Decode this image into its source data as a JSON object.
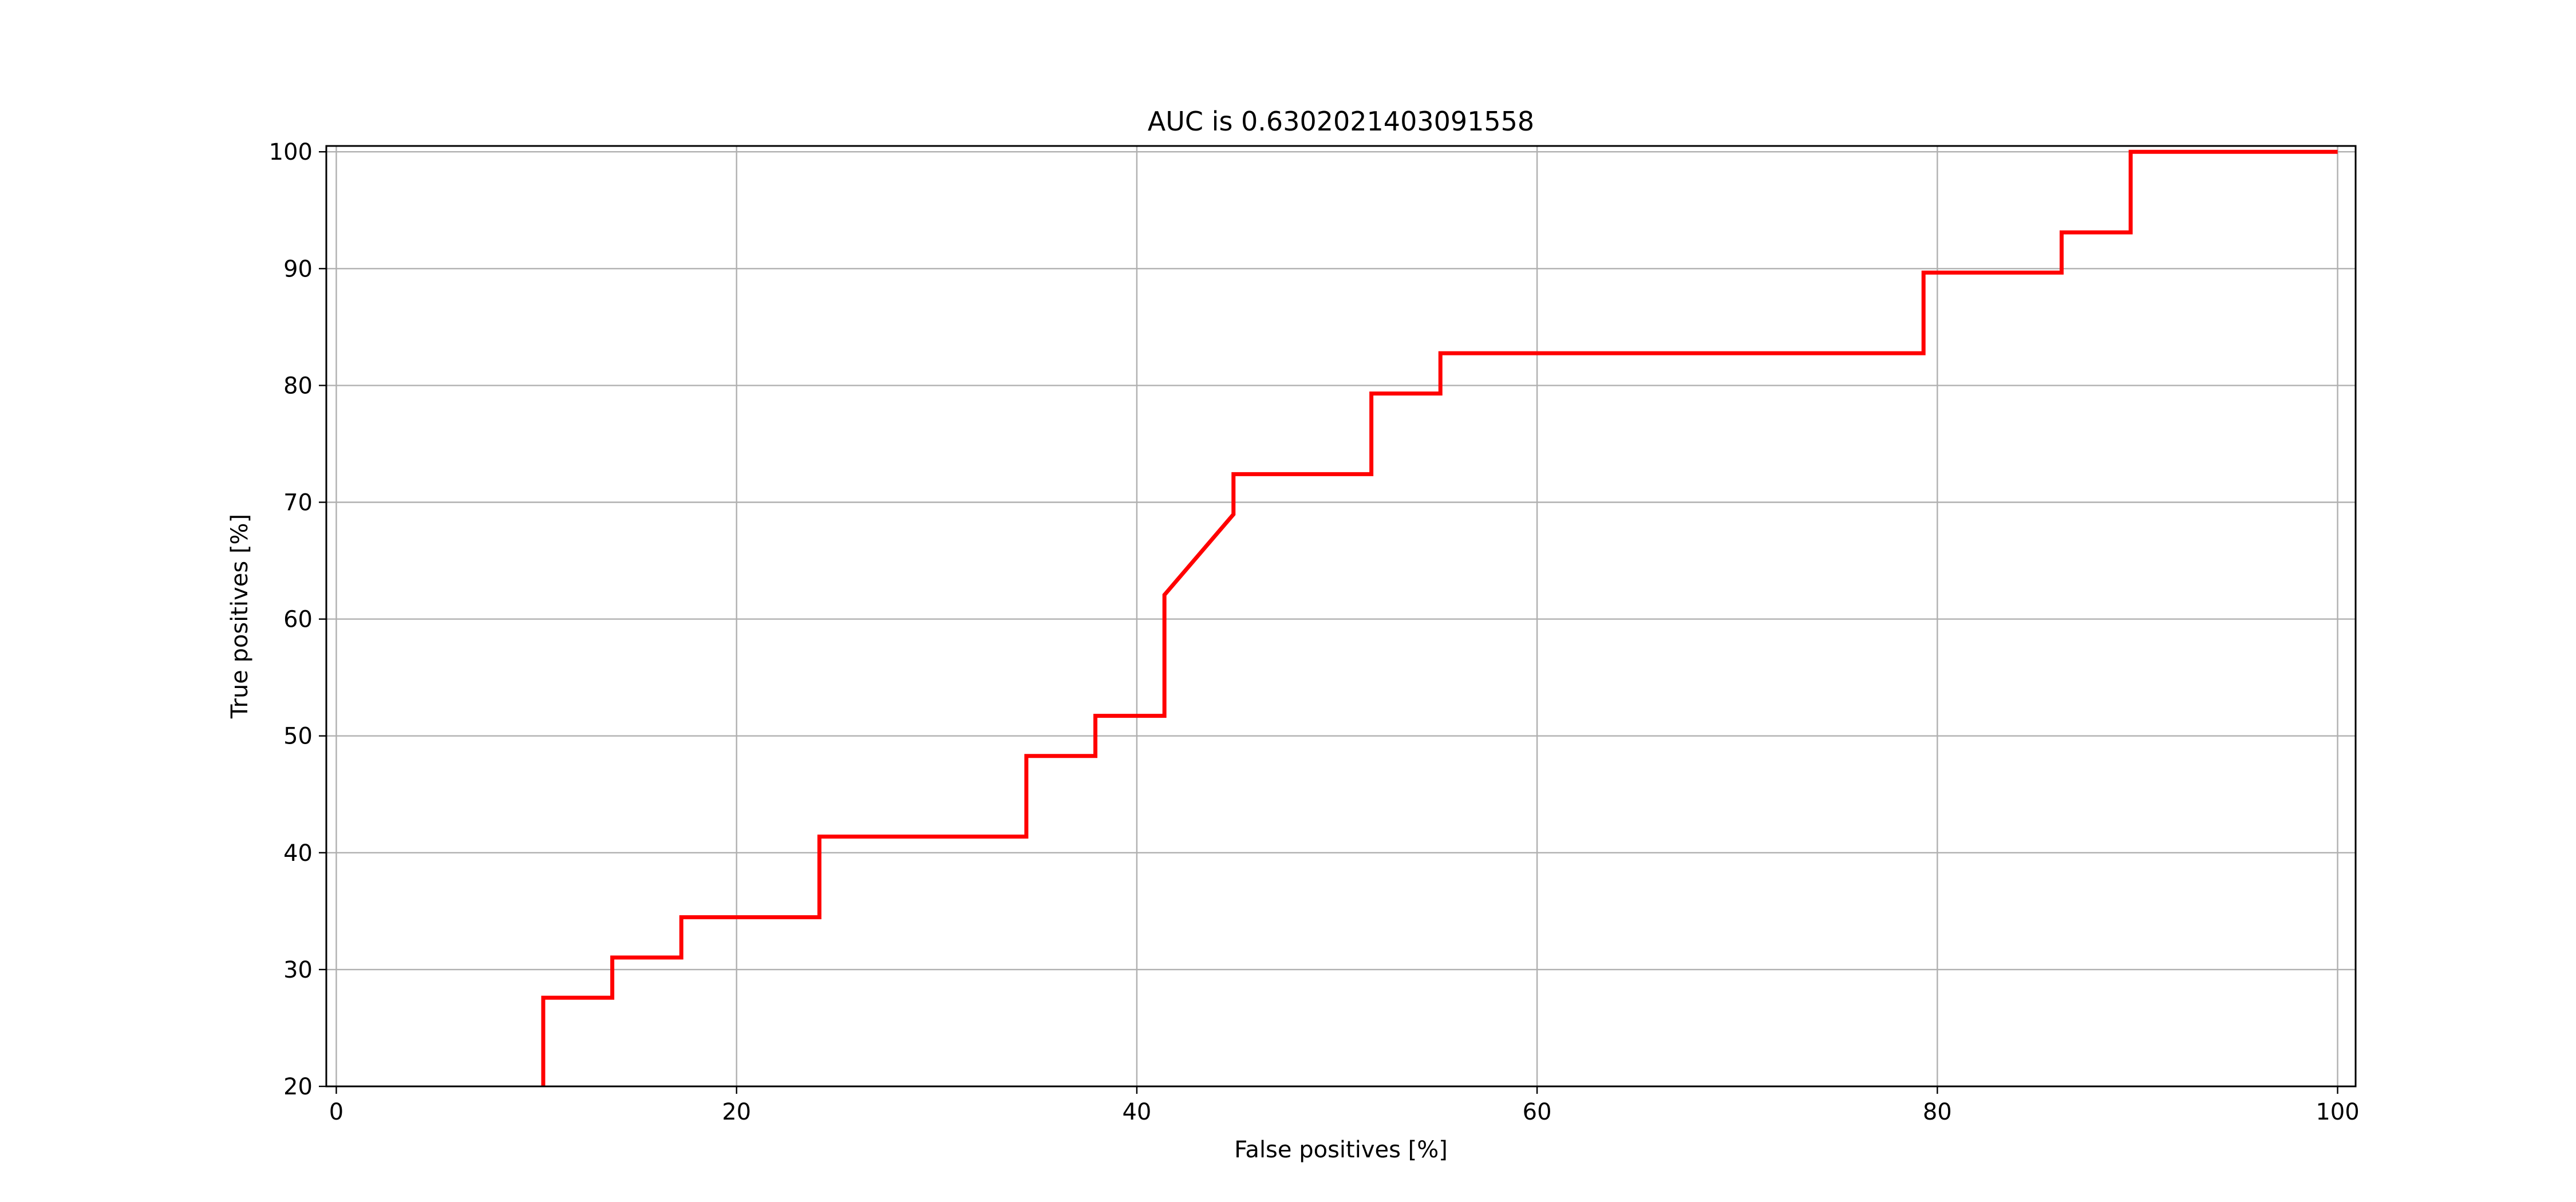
{
  "chart_data": {
    "type": "line",
    "title": "AUC is 0.6302021403091558",
    "xlabel": "False positives [%]",
    "ylabel": "True positives [%]",
    "xlim": [
      -0.5,
      100.9
    ],
    "ylim": [
      20,
      100.5
    ],
    "xticks": [
      0,
      20,
      40,
      60,
      80,
      100
    ],
    "yticks": [
      20,
      30,
      40,
      50,
      60,
      70,
      80,
      90,
      100
    ],
    "xtick_labels": [
      "0",
      "20",
      "40",
      "60",
      "80",
      "100"
    ],
    "ytick_labels": [
      "20",
      "30",
      "40",
      "50",
      "60",
      "70",
      "80",
      "90",
      "100"
    ],
    "grid": true,
    "series": [
      {
        "color": "#ff0000",
        "x": [
          10.34,
          10.34,
          13.79,
          13.79,
          17.24,
          17.24,
          24.14,
          24.14,
          34.48,
          34.48,
          37.93,
          37.93,
          41.38,
          41.38,
          44.83,
          44.83,
          51.72,
          51.72,
          55.17,
          55.17,
          79.31,
          79.31,
          86.21,
          86.21,
          89.66,
          89.66,
          100.0
        ],
        "y": [
          20.0,
          27.59,
          27.59,
          31.03,
          31.03,
          34.48,
          34.48,
          41.38,
          41.38,
          48.28,
          48.28,
          51.72,
          51.72,
          62.07,
          68.97,
          72.41,
          72.41,
          79.31,
          79.31,
          82.76,
          82.76,
          89.66,
          89.66,
          93.1,
          93.1,
          100.0,
          100.0
        ]
      }
    ]
  }
}
